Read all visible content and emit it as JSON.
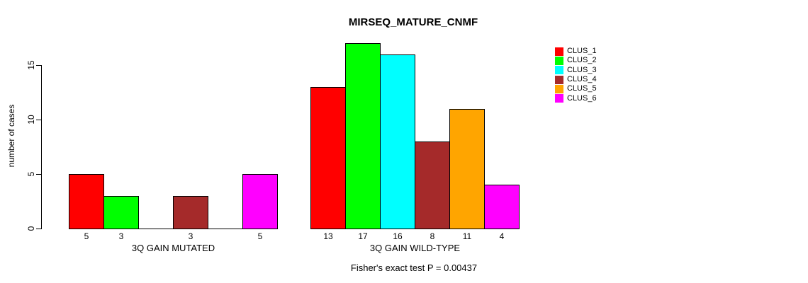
{
  "title": "MIRSEQ_MATURE_CNMF",
  "footer": "Fisher's exact test P = 0.00437",
  "y_axis": {
    "label": "number of cases",
    "ticks": [
      "0",
      "5",
      "10",
      "15"
    ]
  },
  "legend": {
    "items": [
      {
        "label": "CLUS_1",
        "color": "#FF0000"
      },
      {
        "label": "CLUS_2",
        "color": "#00FF00"
      },
      {
        "label": "CLUS_3",
        "color": "#00FFFF"
      },
      {
        "label": "CLUS_4",
        "color": "#A52A2A"
      },
      {
        "label": "CLUS_5",
        "color": "#FFA500"
      },
      {
        "label": "CLUS_6",
        "color": "#FF00FF"
      }
    ]
  },
  "chart_data": {
    "type": "bar",
    "title": "MIRSEQ_MATURE_CNMF",
    "xlabel": "",
    "ylabel": "number of cases",
    "ylim": [
      0,
      17
    ],
    "yticks": [
      0,
      5,
      10,
      15
    ],
    "grid": false,
    "legend_position": "right-outside",
    "categories": [
      "3Q GAIN MUTATED",
      "3Q GAIN WILD-TYPE"
    ],
    "series": [
      {
        "name": "CLUS_1",
        "color": "#FF0000",
        "values": [
          5,
          13
        ]
      },
      {
        "name": "CLUS_2",
        "color": "#00FF00",
        "values": [
          3,
          17
        ]
      },
      {
        "name": "CLUS_3",
        "color": "#00FFFF",
        "values": [
          0,
          16
        ]
      },
      {
        "name": "CLUS_4",
        "color": "#A52A2A",
        "values": [
          3,
          8
        ]
      },
      {
        "name": "CLUS_5",
        "color": "#FFA500",
        "values": [
          0,
          11
        ]
      },
      {
        "name": "CLUS_6",
        "color": "#FF00FF",
        "values": [
          5,
          4
        ]
      }
    ],
    "bar_value_labels_shown": true,
    "zero_value_labels_hidden": true,
    "annotation": "Fisher's exact test P = 0.00437"
  }
}
